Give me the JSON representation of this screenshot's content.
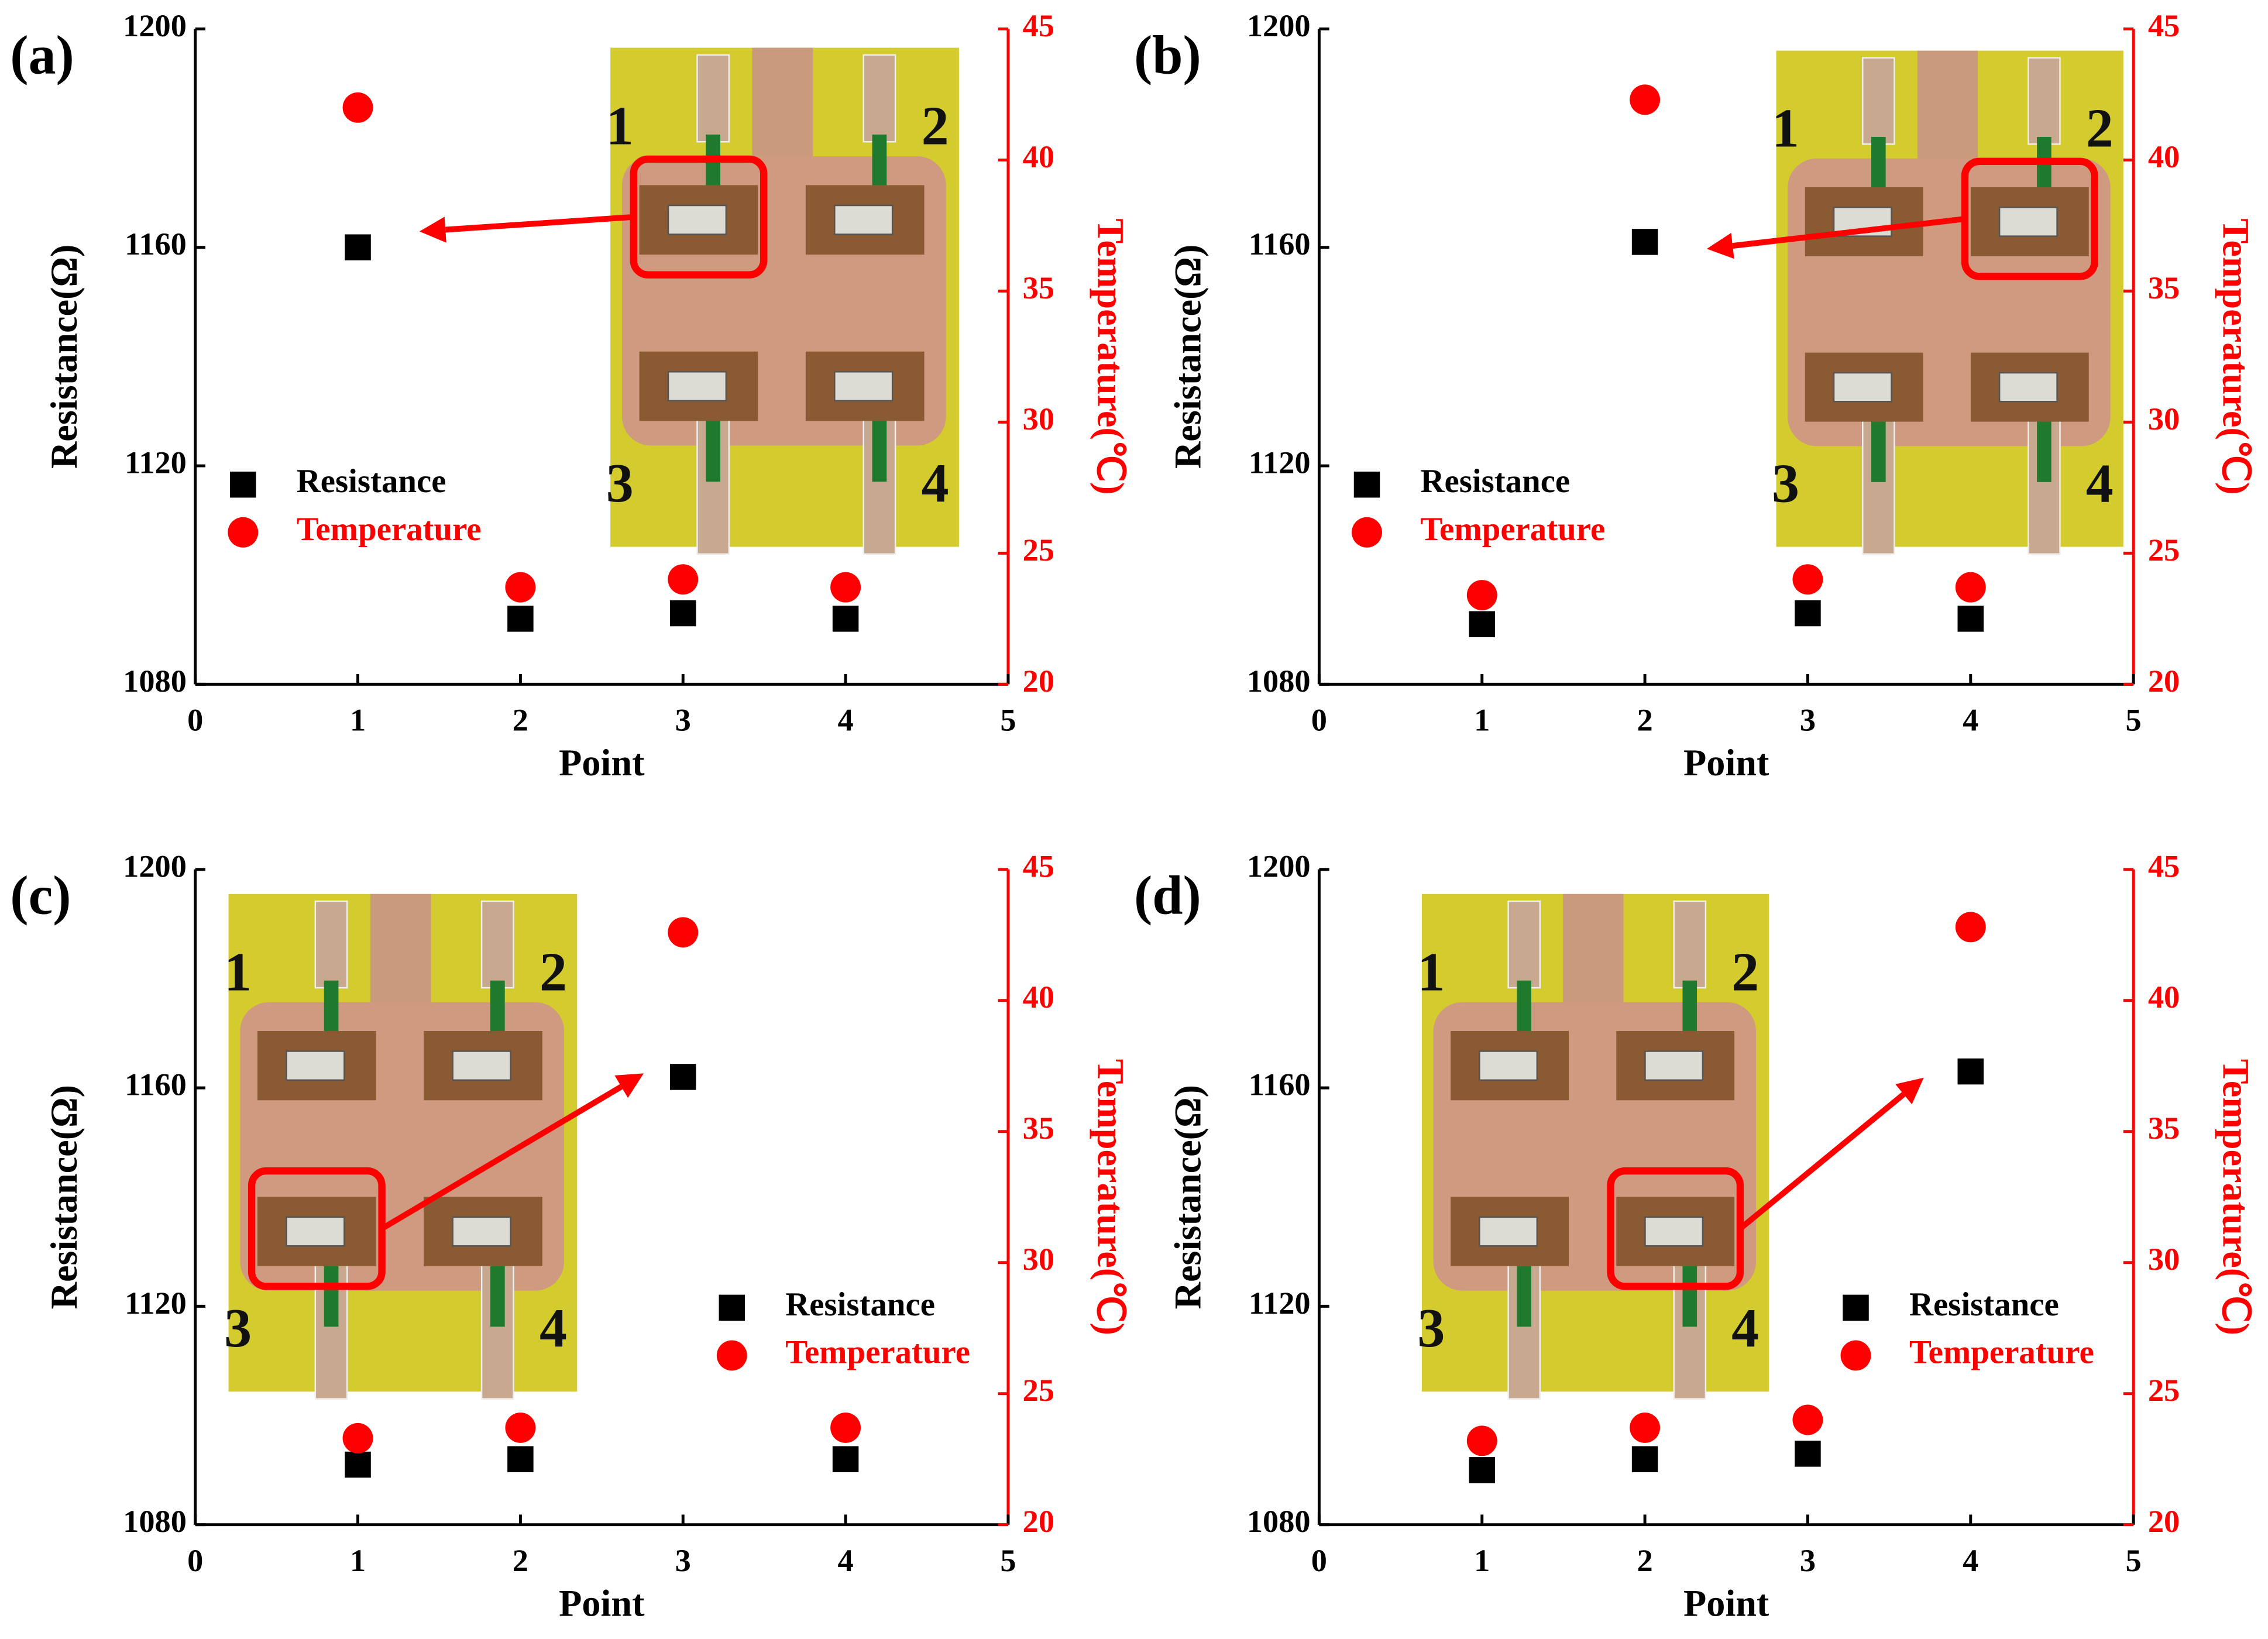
{
  "chart_data": [
    {
      "type": "scatter",
      "panel_label": "(a)",
      "xlabel": "Point",
      "ylabel": "Resistance(Ω)",
      "y2label": "Temperature(℃)",
      "x": [
        1,
        2,
        3,
        4
      ],
      "xlim": [
        0,
        5
      ],
      "xticks": [
        0,
        1,
        2,
        3,
        4,
        5
      ],
      "ylim": [
        1080,
        1200
      ],
      "yticks": [
        1080,
        1120,
        1160,
        1200
      ],
      "y2lim": [
        20,
        45
      ],
      "y2ticks": [
        20,
        25,
        30,
        35,
        40,
        45
      ],
      "legend": "center left",
      "inset_labels": [
        "1",
        "2",
        "3",
        "4"
      ],
      "series": [
        {
          "name": "Resistance",
          "color": "#000000",
          "marker": "square",
          "values": [
            1160,
            1092,
            1093,
            1092
          ]
        },
        {
          "name": "Temperature",
          "color": "#ff0000",
          "marker": "circle",
          "axis": "y2",
          "values": [
            42,
            23.7,
            24,
            23.7
          ]
        }
      ]
    },
    {
      "type": "scatter",
      "panel_label": "(b)",
      "xlabel": "Point",
      "ylabel": "Resistance(Ω)",
      "y2label": "Temperature(℃)",
      "x": [
        1,
        2,
        3,
        4
      ],
      "xlim": [
        0,
        5
      ],
      "xticks": [
        0,
        1,
        2,
        3,
        4,
        5
      ],
      "ylim": [
        1080,
        1200
      ],
      "yticks": [
        1080,
        1120,
        1160,
        1200
      ],
      "y2lim": [
        20,
        45
      ],
      "y2ticks": [
        20,
        25,
        30,
        35,
        40,
        45
      ],
      "legend": "center left",
      "inset_labels": [
        "1",
        "2",
        "3",
        "4"
      ],
      "series": [
        {
          "name": "Resistance",
          "color": "#000000",
          "marker": "square",
          "values": [
            1091,
            1161,
            1093,
            1092
          ]
        },
        {
          "name": "Temperature",
          "color": "#ff0000",
          "marker": "circle",
          "axis": "y2",
          "values": [
            23.4,
            42.3,
            24,
            23.7
          ]
        }
      ]
    },
    {
      "type": "scatter",
      "panel_label": "(c)",
      "xlabel": "Point",
      "ylabel": "Resistance(Ω)",
      "y2label": "Temperature(℃)",
      "x": [
        1,
        2,
        3,
        4
      ],
      "xlim": [
        0,
        5
      ],
      "xticks": [
        0,
        1,
        2,
        3,
        4,
        5
      ],
      "ylim": [
        1080,
        1200
      ],
      "yticks": [
        1080,
        1120,
        1160,
        1200
      ],
      "y2lim": [
        20,
        45
      ],
      "y2ticks": [
        20,
        25,
        30,
        35,
        40,
        45
      ],
      "legend": "lower right",
      "inset_labels": [
        "1",
        "2",
        "3",
        "4"
      ],
      "series": [
        {
          "name": "Resistance",
          "color": "#000000",
          "marker": "square",
          "values": [
            1091,
            1092,
            1162,
            1092
          ]
        },
        {
          "name": "Temperature",
          "color": "#ff0000",
          "marker": "circle",
          "axis": "y2",
          "values": [
            23.3,
            23.7,
            42.6,
            23.7
          ]
        }
      ]
    },
    {
      "type": "scatter",
      "panel_label": "(d)",
      "xlabel": "Point",
      "ylabel": "Resistance(Ω)",
      "y2label": "Temperature(℃)",
      "x": [
        1,
        2,
        3,
        4
      ],
      "xlim": [
        0,
        5
      ],
      "xticks": [
        0,
        1,
        2,
        3,
        4,
        5
      ],
      "ylim": [
        1080,
        1200
      ],
      "yticks": [
        1080,
        1120,
        1160,
        1200
      ],
      "y2lim": [
        20,
        45
      ],
      "y2ticks": [
        20,
        25,
        30,
        35,
        40,
        45
      ],
      "legend": "lower right",
      "inset_labels": [
        "1",
        "2",
        "3",
        "4"
      ],
      "series": [
        {
          "name": "Resistance",
          "color": "#000000",
          "marker": "square",
          "values": [
            1090,
            1092,
            1093,
            1163
          ]
        },
        {
          "name": "Temperature",
          "color": "#ff0000",
          "marker": "circle",
          "axis": "y2",
          "values": [
            23.2,
            23.7,
            24,
            42.8
          ]
        }
      ]
    }
  ]
}
